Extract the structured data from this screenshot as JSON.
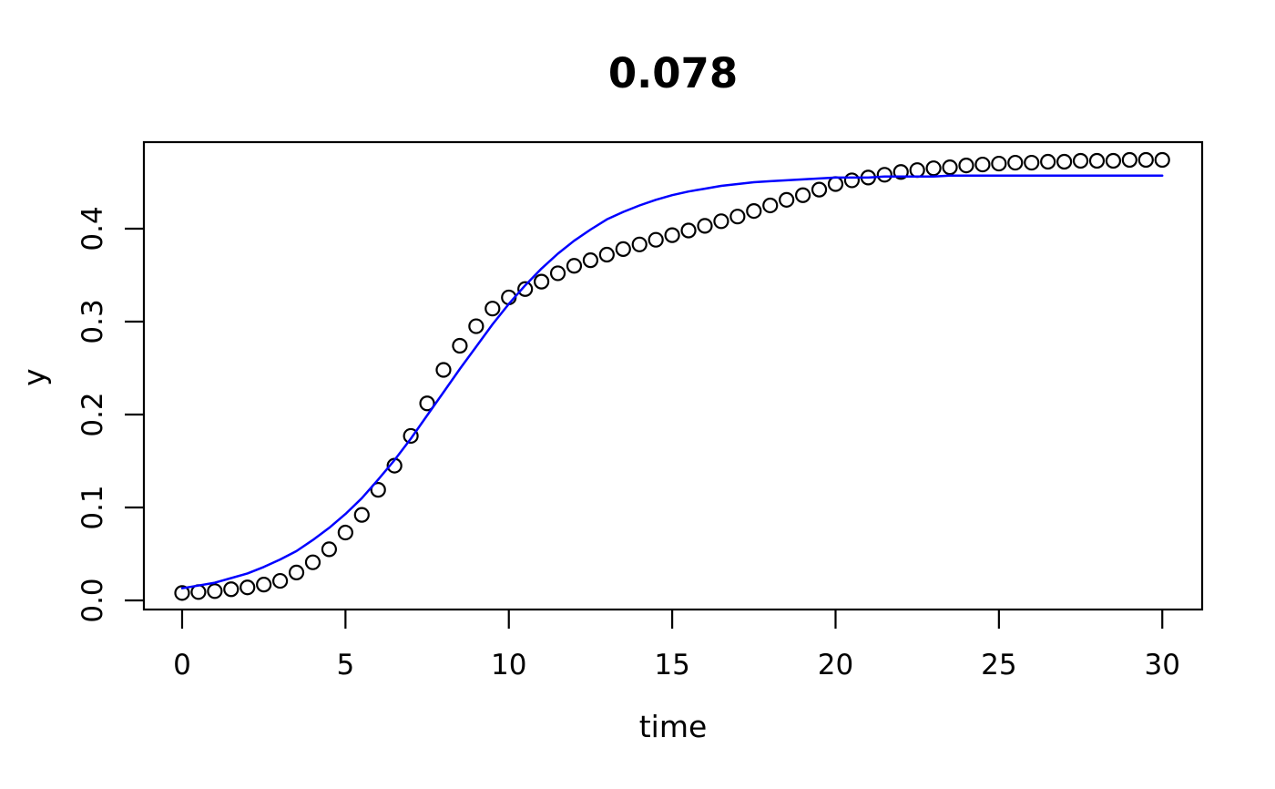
{
  "figure": {
    "title": "0.078",
    "x_axis_label": "time",
    "y_axis_label": "y"
  },
  "chart_data": {
    "type": "scatter",
    "title": "0.078",
    "xlabel": "time",
    "ylabel": "y",
    "grid": false,
    "legend_position": "none",
    "x_tick_labels": [
      "0",
      "5",
      "10",
      "15",
      "20",
      "25",
      "30"
    ],
    "x_tick_values": [
      0,
      5,
      10,
      15,
      20,
      25,
      30
    ],
    "y_tick_labels": [
      "0.0",
      "0.1",
      "0.2",
      "0.3",
      "0.4"
    ],
    "y_tick_values": [
      0,
      0.1,
      0.2,
      0.3,
      0.4
    ],
    "xlim": [
      -1.17,
      31.22
    ],
    "ylim": [
      -0.0098,
      0.4931
    ],
    "colors": {
      "points": "#000000",
      "line": "#0000ff"
    },
    "series": [
      {
        "name": "observed-points",
        "type": "scatter",
        "marker": "open-circle",
        "color": "#000000",
        "x": [
          0,
          0.5,
          1,
          1.5,
          2,
          2.5,
          3,
          3.5,
          4,
          4.5,
          5,
          5.5,
          6,
          6.5,
          7,
          7.5,
          8,
          8.5,
          9,
          9.5,
          10,
          10.5,
          11,
          11.5,
          12,
          12.5,
          13,
          13.5,
          14,
          14.5,
          15,
          15.5,
          16,
          16.5,
          17,
          17.5,
          18,
          18.5,
          19,
          19.5,
          20,
          20.5,
          21,
          21.5,
          22,
          22.5,
          23,
          23.5,
          24,
          24.5,
          25,
          25.5,
          26,
          26.5,
          27,
          27.5,
          28,
          28.5,
          29,
          29.5,
          30
        ],
        "y": [
          0.008,
          0.009,
          0.01,
          0.012,
          0.014,
          0.017,
          0.021,
          0.03,
          0.041,
          0.055,
          0.073,
          0.092,
          0.119,
          0.145,
          0.177,
          0.212,
          0.248,
          0.274,
          0.295,
          0.314,
          0.326,
          0.335,
          0.343,
          0.352,
          0.36,
          0.366,
          0.372,
          0.378,
          0.383,
          0.388,
          0.393,
          0.398,
          0.403,
          0.408,
          0.413,
          0.419,
          0.425,
          0.431,
          0.436,
          0.442,
          0.448,
          0.452,
          0.455,
          0.458,
          0.461,
          0.463,
          0.465,
          0.466,
          0.468,
          0.469,
          0.47,
          0.471,
          0.471,
          0.472,
          0.472,
          0.473,
          0.473,
          0.473,
          0.474,
          0.474,
          0.474
        ]
      },
      {
        "name": "fitted-logistic-line",
        "type": "line",
        "color": "#0000ff",
        "x": [
          0,
          0.5,
          1,
          1.5,
          2,
          2.5,
          3,
          3.5,
          4,
          4.5,
          5,
          5.5,
          6,
          6.5,
          7,
          7.5,
          8,
          8.5,
          9,
          9.5,
          10,
          10.5,
          11,
          11.5,
          12,
          12.5,
          13,
          13.5,
          14,
          14.5,
          15,
          15.5,
          16,
          16.5,
          17,
          17.5,
          18,
          18.5,
          19,
          19.5,
          20,
          20.5,
          21,
          21.5,
          22,
          22.5,
          23,
          23.5,
          24,
          24.5,
          25,
          25.5,
          26,
          26.5,
          27,
          27.5,
          28,
          28.5,
          29,
          29.5,
          30
        ],
        "y": [
          0.013,
          0.016,
          0.019,
          0.024,
          0.029,
          0.036,
          0.044,
          0.053,
          0.065,
          0.078,
          0.093,
          0.11,
          0.13,
          0.151,
          0.174,
          0.199,
          0.224,
          0.249,
          0.273,
          0.297,
          0.319,
          0.339,
          0.357,
          0.373,
          0.387,
          0.399,
          0.41,
          0.418,
          0.425,
          0.431,
          0.436,
          0.44,
          0.443,
          0.446,
          0.448,
          0.45,
          0.451,
          0.452,
          0.453,
          0.454,
          0.455,
          0.455,
          0.455,
          0.456,
          0.456,
          0.456,
          0.456,
          0.457,
          0.457,
          0.457,
          0.457,
          0.457,
          0.457,
          0.457,
          0.457,
          0.457,
          0.457,
          0.457,
          0.457,
          0.457,
          0.457
        ]
      }
    ]
  }
}
